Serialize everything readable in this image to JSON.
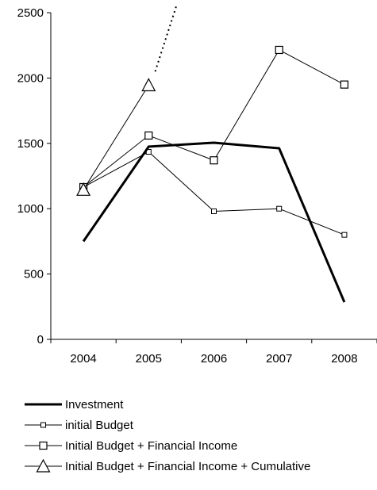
{
  "chart_data": {
    "type": "line",
    "title": "",
    "xlabel": "",
    "ylabel": "",
    "categories": [
      "2004",
      "2005",
      "2006",
      "2007",
      "2008"
    ],
    "ylim": [
      0,
      2500
    ],
    "yticks": [
      0,
      500,
      1000,
      1500,
      2000,
      2500
    ],
    "grid": false,
    "legend_position": "bottom",
    "series": [
      {
        "name": "Investment",
        "values": [
          750,
          1475,
          1505,
          1462,
          285
        ],
        "marker": "none",
        "style": "thick"
      },
      {
        "name": "initial Budget",
        "values": [
          1165,
          1435,
          980,
          1000,
          800
        ],
        "marker": "small-square",
        "style": "thin"
      },
      {
        "name": "Initial Budget + Financial Income",
        "values": [
          1165,
          1560,
          1370,
          2215,
          1950
        ],
        "marker": "square",
        "style": "thin"
      },
      {
        "name": "Initial Budget + Financial  Income + Cumulative",
        "values": [
          1145,
          1945,
          null,
          null,
          null
        ],
        "marker": "triangle",
        "style": "thin",
        "dotted_continuation": {
          "from": [
            1.1,
            2050
          ],
          "to": [
            1.43,
            2560
          ]
        }
      }
    ]
  }
}
